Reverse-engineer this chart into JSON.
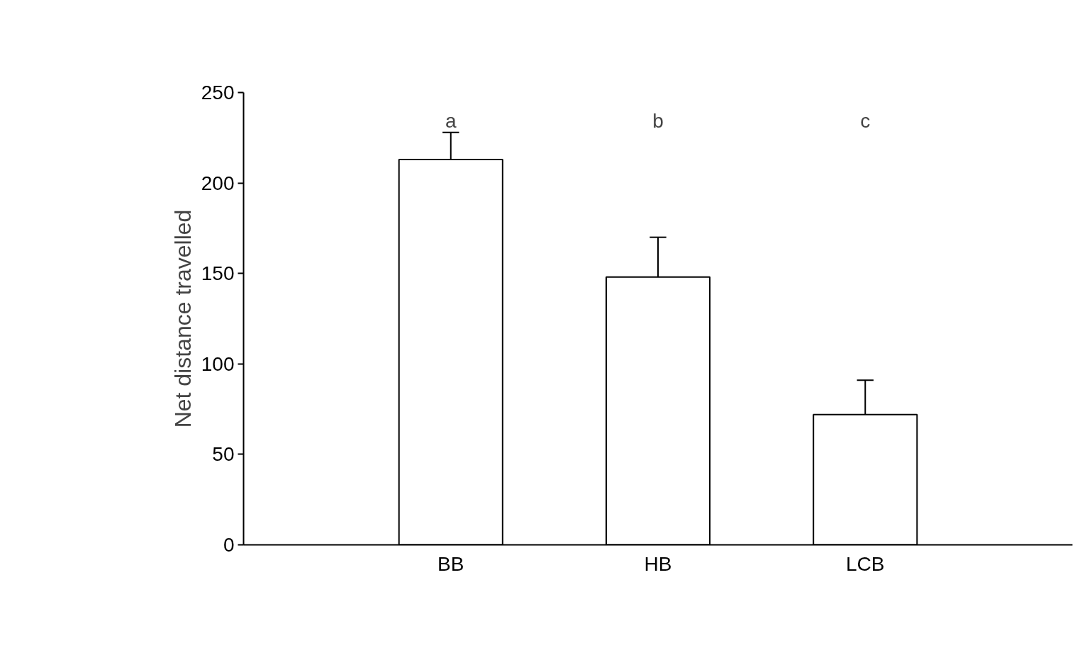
{
  "chart_data": {
    "type": "bar",
    "ylabel": "Net distance travelled",
    "categories": [
      "BB",
      "HB",
      "LCB"
    ],
    "values": [
      213,
      148,
      72
    ],
    "errors": [
      [
        213,
        228
      ],
      [
        148,
        170
      ],
      [
        72,
        91
      ]
    ],
    "color": "#ffffff",
    "ylim": [
      0,
      250
    ],
    "yticks": [
      0,
      50,
      100,
      150,
      200,
      250
    ],
    "grid": false,
    "annotations": [
      "a",
      "b",
      "c"
    ]
  }
}
